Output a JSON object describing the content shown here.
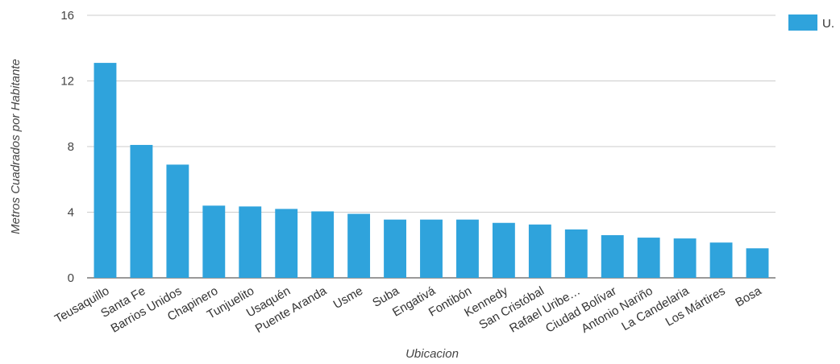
{
  "chart_data": {
    "type": "bar",
    "categories": [
      "Teusaquillo",
      "Santa Fe",
      "Barrios Unidos",
      "Chapinero",
      "Tunjuelito",
      "Usaquén",
      "Puente Aranda",
      "Usme",
      "Suba",
      "Engativá",
      "Fontibón",
      "Kennedy",
      "San Cristóbal",
      "Rafael Uribe…",
      "Ciudad Bolívar",
      "Antonio Nariño",
      "La Candelaria",
      "Los Mártires",
      "Bosa"
    ],
    "series": [
      {
        "name": "U.",
        "color": "#2fa3dc",
        "values": [
          13.1,
          8.1,
          6.9,
          4.4,
          4.35,
          4.2,
          4.05,
          3.9,
          3.55,
          3.55,
          3.55,
          3.35,
          3.25,
          2.95,
          2.6,
          2.45,
          2.4,
          2.15,
          1.8
        ]
      }
    ],
    "xlabel": "Ubicacion",
    "ylabel": "Metros Cuadrados por Habitante",
    "ylim": [
      0,
      16
    ],
    "yticks": [
      "0",
      "4",
      "8",
      "12",
      "16"
    ],
    "grid": true,
    "legend": "top-right"
  }
}
